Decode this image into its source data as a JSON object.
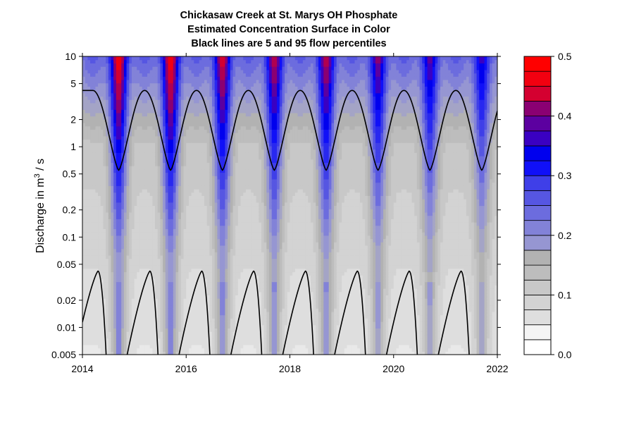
{
  "chart_data": {
    "type": "heatmap",
    "title_lines": [
      "Chickasaw Creek at St. Marys OH    Phosphate",
      "Estimated Concentration Surface in Color",
      "Black lines are 5 and 95 flow percentiles"
    ],
    "xlabel": "",
    "ylabel": "Discharge in m",
    "ylabel_superscript": "3",
    "ylabel_suffix": " / s",
    "x_ticks": [
      "2014",
      "2016",
      "2018",
      "2020",
      "2022"
    ],
    "x_tick_values": [
      2014,
      2016,
      2018,
      2020,
      2022
    ],
    "xlim": [
      2014,
      2022
    ],
    "y_scale": "log",
    "ylim": [
      0.005,
      10
    ],
    "y_ticks": [
      "0.005",
      "0.01",
      "0.02",
      "0.05",
      "0.1",
      "0.2",
      "0.5",
      "1",
      "2",
      "5",
      "10"
    ],
    "y_tick_values": [
      0.005,
      0.01,
      0.02,
      0.05,
      0.1,
      0.2,
      0.5,
      1,
      2,
      5,
      10
    ],
    "colorbar": {
      "ticks": [
        "0.0",
        "0.1",
        "0.2",
        "0.3",
        "0.4",
        "0.5"
      ],
      "tick_values": [
        0.0,
        0.1,
        0.2,
        0.3,
        0.4,
        0.5
      ],
      "range": [
        0.0,
        0.5
      ],
      "levels": 20,
      "colors": [
        "#ffffff",
        "#f4f4f4",
        "#e9e9e9",
        "#dedede",
        "#d3d3d3",
        "#c8c8c8",
        "#bdbdbd",
        "#b2b2b2",
        "#a4a4c6",
        "#9696d2",
        "#8282d8",
        "#6c6cde",
        "#5656e2",
        "#3f3fe8",
        "#2828f0",
        "#1010f8",
        "#0000ee",
        "#3a00c2",
        "#5c00a0",
        "#8a0072",
        "#b00050",
        "#d40030",
        "#f20010",
        "#ff0000"
      ]
    },
    "flow_percentile_95": {
      "min_discharge": 0.55,
      "max_discharge": 4.2,
      "low_years": [
        2014.7,
        2015.7,
        2016.7,
        2017.7,
        2018.7,
        2019.7,
        2020.7,
        2021.7
      ]
    },
    "flow_percentile_5": {
      "peak_discharge": 0.042,
      "peak_years": [
        2014.3,
        2015.3,
        2016.3,
        2017.3,
        2018.3,
        2019.3,
        2020.3,
        2021.3
      ]
    },
    "high_concentration_seasons": [
      2014.7,
      2015.7,
      2016.7,
      2017.7,
      2018.7,
      2019.7,
      2020.7,
      2021.7
    ],
    "peak_concentration_by_year": [
      0.45,
      0.45,
      0.42,
      0.4,
      0.4,
      0.37,
      0.35,
      0.33
    ]
  }
}
